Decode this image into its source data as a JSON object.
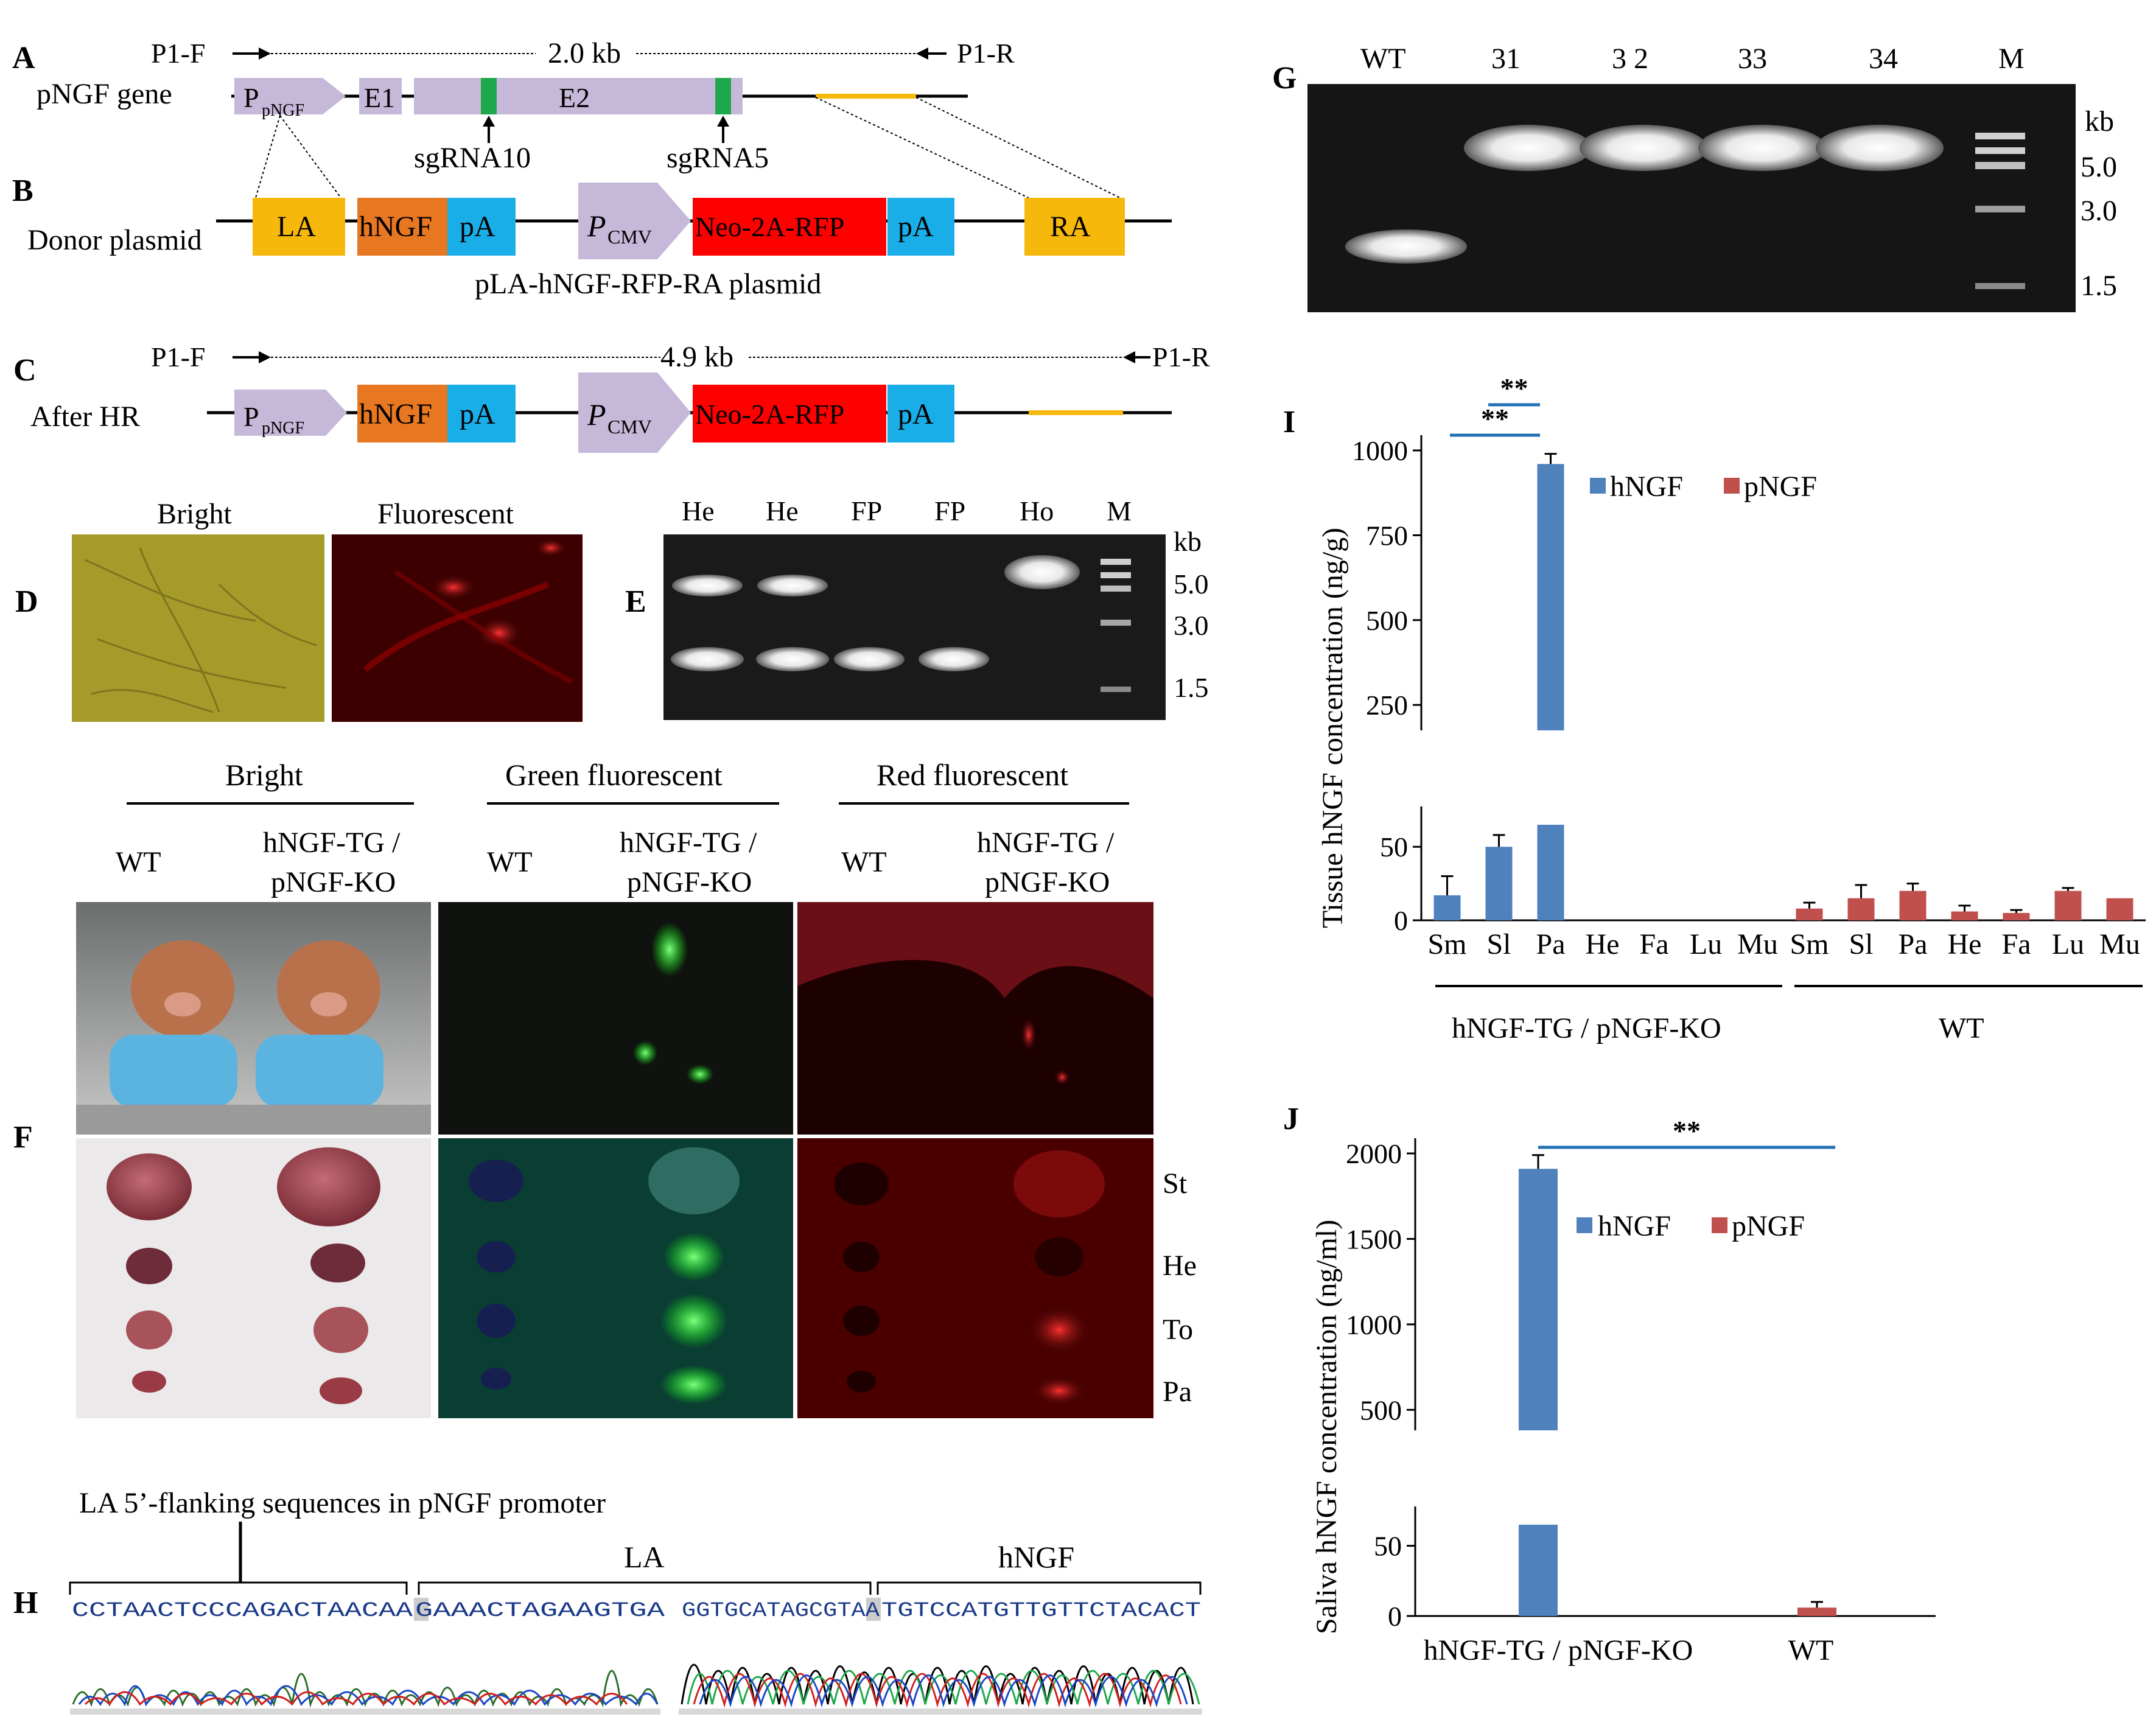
{
  "panel_letters": {
    "A": "A",
    "B": "B",
    "C": "C",
    "D": "D",
    "E": "E",
    "F": "F",
    "G": "G",
    "H": "H",
    "I": "I",
    "J": "J"
  },
  "colors": {
    "purple": "#c6b8d9",
    "orange": "#e87722",
    "blue_box": "#1aaee8",
    "red_box": "#ff0000",
    "gold": "#f7b80c",
    "green": "#1fa84b",
    "bar_blue": "#4f81bd",
    "bar_red": "#c0504d",
    "sig_line": "#1f6fb2"
  },
  "panel_a": {
    "row_label": "pNGF gene",
    "primer_f": "P1-F",
    "primer_r": "P1-R",
    "length": "2.0 kb",
    "promoter": "P",
    "promoter_sub": "pNGF",
    "exon1": "E1",
    "exon2": "E2",
    "sgrna_a": "sgRNA10",
    "sgrna_b": "sgRNA5"
  },
  "panel_b": {
    "row_label": "Donor plasmid",
    "la": "LA",
    "hngf": "hNGF",
    "pa": "pA",
    "cmv": "P",
    "cmv_sub": "CMV",
    "neo": "Neo-2A-RFP",
    "pa2": "pA",
    "ra": "RA",
    "caption": "pLA-hNGF-RFP-RA plasmid"
  },
  "panel_c": {
    "row_label": "After HR",
    "primer_f": "P1-F",
    "primer_r": "P1-R",
    "length": "4.9 kb",
    "promoter": "P",
    "promoter_sub": "pNGF",
    "hngf": "hNGF",
    "pa": "pA",
    "cmv": "P",
    "cmv_sub": "CMV",
    "neo": "Neo-2A-RFP",
    "pa2": "pA"
  },
  "panel_d": {
    "bright": "Bright",
    "fluorescent": "Fluorescent"
  },
  "panel_e": {
    "lanes": [
      "He",
      "He",
      "FP",
      "FP",
      "Ho",
      "M"
    ],
    "kb": "kb",
    "markers": [
      "5.0",
      "3.0",
      "1.5"
    ]
  },
  "panel_f": {
    "group_bright": "Bright",
    "group_green": "Green fluorescent",
    "group_red": "Red fluorescent",
    "wt": "WT",
    "tg": "hNGF-TG /",
    "ko": "pNGF-KO",
    "organs": [
      "St",
      "He",
      "To",
      "Pa"
    ]
  },
  "panel_g": {
    "lanes": [
      "WT",
      "31",
      "3 2",
      "33",
      "34",
      "M"
    ],
    "kb": "kb",
    "markers": [
      "5.0",
      "3.0",
      "1.5"
    ]
  },
  "panel_h": {
    "title": "LA 5’-flanking sequences in pNGF promoter",
    "la": "LA",
    "hngf": "hNGF",
    "seq1": "CCTAACTCCCAGACTAACAA",
    "seq2": "GAAACTAGAAGTGA",
    "seq3": "GGTGCATAGCGTAA",
    "seq4": "TGTCCATGTTGTTCTACACT"
  },
  "chart_data": [
    {
      "type": "bar",
      "panel": "I",
      "ylabel": "Tissue hNGF concentration (ng/g)",
      "yticks_upper": [
        "1000",
        "750",
        "500",
        "250"
      ],
      "yticks_lower": [
        "50",
        "0"
      ],
      "axis_break": [
        65,
        175
      ],
      "categories": [
        "Sm",
        "Sl",
        "Pa",
        "He",
        "Fa",
        "Lu",
        "Mu",
        "Sm",
        "Sl",
        "Pa",
        "He",
        "Fa",
        "Lu",
        "Mu"
      ],
      "groups": [
        "hNGF-TG / pNGF-KO",
        "WT"
      ],
      "series": [
        {
          "name": "hNGF",
          "values": [
            17,
            50,
            960,
            0,
            0,
            0,
            0,
            null,
            null,
            null,
            null,
            null,
            null,
            null
          ],
          "errors": [
            13,
            8,
            30,
            0,
            0,
            0,
            0,
            null,
            null,
            null,
            null,
            null,
            null,
            null
          ]
        },
        {
          "name": "pNGF",
          "values": [
            null,
            null,
            null,
            null,
            null,
            null,
            null,
            8,
            15,
            20,
            6,
            5,
            20,
            15
          ],
          "errors": [
            null,
            null,
            null,
            null,
            null,
            null,
            null,
            4,
            9,
            5,
            4,
            2,
            2,
            0
          ]
        }
      ],
      "significance": [
        {
          "from": "Sm",
          "to": "Pa",
          "label": "**"
        },
        {
          "from": "Sl",
          "to": "Pa",
          "label": "**"
        }
      ]
    },
    {
      "type": "bar",
      "panel": "J",
      "ylabel": "Saliva hNGF concentration (ng/ml)",
      "yticks_upper": [
        "2000",
        "1500",
        "1000",
        "500"
      ],
      "yticks_lower": [
        "50",
        "0"
      ],
      "axis_break": [
        65,
        380
      ],
      "categories": [
        "hNGF-TG / pNGF-KO",
        "WT"
      ],
      "series": [
        {
          "name": "hNGF",
          "values": [
            1910,
            null
          ],
          "errors": [
            80,
            null
          ]
        },
        {
          "name": "pNGF",
          "values": [
            null,
            6
          ],
          "errors": [
            null,
            4
          ]
        }
      ],
      "significance": [
        {
          "from": "hNGF-TG / pNGF-KO",
          "to": "WT",
          "label": "**"
        }
      ]
    }
  ]
}
